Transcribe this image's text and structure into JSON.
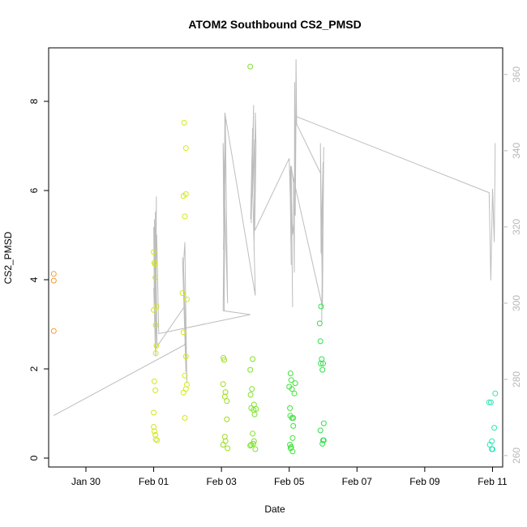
{
  "chart_data": {
    "type": "scatter",
    "title": "ATOM2 Southbound CS2_PMSD",
    "xlabel": "Date",
    "ylabel": "CS2_PMSD",
    "xlim": [
      -2.1,
      11.3
    ],
    "ylim": [
      -0.2,
      9.2
    ],
    "x_ticks": [
      {
        "value": -1,
        "label": "Jan 30"
      },
      {
        "value": 1,
        "label": "Feb 01"
      },
      {
        "value": 3,
        "label": "Feb 03"
      },
      {
        "value": 5,
        "label": "Feb 05"
      },
      {
        "value": 7,
        "label": "Feb 07"
      },
      {
        "value": 9,
        "label": "Feb 09"
      },
      {
        "value": 11,
        "label": "Feb 11"
      }
    ],
    "y_ticks": [
      0,
      2,
      4,
      6,
      8
    ],
    "y2_ticks": [
      260,
      280,
      300,
      320,
      340,
      360
    ],
    "y2lim": [
      257,
      367
    ],
    "grid": false,
    "points": [
      {
        "x": -1.95,
        "y": 4.13,
        "color": "#f39a2e"
      },
      {
        "x": -1.95,
        "y": 3.98,
        "color": "#f39a2e"
      },
      {
        "x": -1.95,
        "y": 2.85,
        "color": "#f39a2e"
      },
      {
        "x": 1.0,
        "y": 4.62,
        "color": "#d2e619"
      },
      {
        "x": 1.02,
        "y": 4.38,
        "color": "#d2e619"
      },
      {
        "x": 1.04,
        "y": 4.35,
        "color": "#d2e619"
      },
      {
        "x": 1.05,
        "y": 4.05,
        "color": "#d2e619"
      },
      {
        "x": 1.0,
        "y": 3.32,
        "color": "#d2e619"
      },
      {
        "x": 1.08,
        "y": 3.4,
        "color": "#d2e619"
      },
      {
        "x": 1.06,
        "y": 2.98,
        "color": "#d2e619"
      },
      {
        "x": 1.08,
        "y": 2.52,
        "color": "#d2e619"
      },
      {
        "x": 1.06,
        "y": 2.35,
        "color": "#d2e619"
      },
      {
        "x": 1.02,
        "y": 1.72,
        "color": "#d2e619"
      },
      {
        "x": 1.05,
        "y": 1.52,
        "color": "#d2e619"
      },
      {
        "x": 1.0,
        "y": 1.02,
        "color": "#d2e619"
      },
      {
        "x": 1.0,
        "y": 0.7,
        "color": "#d2e619"
      },
      {
        "x": 1.02,
        "y": 0.6,
        "color": "#d2e619"
      },
      {
        "x": 1.05,
        "y": 0.52,
        "color": "#d2e619"
      },
      {
        "x": 1.06,
        "y": 0.42,
        "color": "#d2e619"
      },
      {
        "x": 1.1,
        "y": 0.4,
        "color": "#d2e619"
      },
      {
        "x": 1.9,
        "y": 7.52,
        "color": "#d4ea14"
      },
      {
        "x": 1.95,
        "y": 6.95,
        "color": "#d4ea14"
      },
      {
        "x": 1.88,
        "y": 5.88,
        "color": "#d4ea14"
      },
      {
        "x": 1.95,
        "y": 5.92,
        "color": "#d4ea14"
      },
      {
        "x": 1.92,
        "y": 5.42,
        "color": "#d4ea14"
      },
      {
        "x": 1.85,
        "y": 3.7,
        "color": "#d4ea14"
      },
      {
        "x": 1.98,
        "y": 3.56,
        "color": "#d4ea14"
      },
      {
        "x": 1.88,
        "y": 2.82,
        "color": "#d4ea14"
      },
      {
        "x": 1.95,
        "y": 2.28,
        "color": "#d4ea14"
      },
      {
        "x": 1.92,
        "y": 1.85,
        "color": "#d4ea14"
      },
      {
        "x": 1.98,
        "y": 1.65,
        "color": "#d4ea14"
      },
      {
        "x": 1.95,
        "y": 1.55,
        "color": "#d4ea14"
      },
      {
        "x": 1.88,
        "y": 1.47,
        "color": "#d4ea14"
      },
      {
        "x": 1.92,
        "y": 0.9,
        "color": "#d4ea14"
      },
      {
        "x": 3.06,
        "y": 2.25,
        "color": "#9cde1e"
      },
      {
        "x": 3.08,
        "y": 2.2,
        "color": "#9cde1e"
      },
      {
        "x": 3.05,
        "y": 1.66,
        "color": "#9cde1e"
      },
      {
        "x": 3.12,
        "y": 1.48,
        "color": "#9cde1e"
      },
      {
        "x": 3.1,
        "y": 1.38,
        "color": "#9cde1e"
      },
      {
        "x": 3.16,
        "y": 1.28,
        "color": "#9cde1e"
      },
      {
        "x": 3.16,
        "y": 0.87,
        "color": "#9cde1e"
      },
      {
        "x": 3.1,
        "y": 0.48,
        "color": "#9cde1e"
      },
      {
        "x": 3.05,
        "y": 0.3,
        "color": "#9cde1e"
      },
      {
        "x": 3.12,
        "y": 0.38,
        "color": "#9cde1e"
      },
      {
        "x": 3.18,
        "y": 0.22,
        "color": "#9cde1e"
      },
      {
        "x": 3.85,
        "y": 8.78,
        "color": "#7ee22a"
      },
      {
        "x": 3.92,
        "y": 2.22,
        "color": "#7ee22a"
      },
      {
        "x": 3.85,
        "y": 1.98,
        "color": "#7ee22a"
      },
      {
        "x": 3.9,
        "y": 1.55,
        "color": "#7ee22a"
      },
      {
        "x": 3.86,
        "y": 1.42,
        "color": "#7ee22a"
      },
      {
        "x": 3.96,
        "y": 1.2,
        "color": "#7ee22a"
      },
      {
        "x": 3.88,
        "y": 1.12,
        "color": "#7ee22a"
      },
      {
        "x": 3.95,
        "y": 1.08,
        "color": "#7ee22a"
      },
      {
        "x": 4.02,
        "y": 1.1,
        "color": "#7ee22a"
      },
      {
        "x": 3.98,
        "y": 0.98,
        "color": "#7ee22a"
      },
      {
        "x": 3.92,
        "y": 0.55,
        "color": "#7ee22a"
      },
      {
        "x": 3.96,
        "y": 0.38,
        "color": "#7ee22a"
      },
      {
        "x": 3.88,
        "y": 0.3,
        "color": "#7ee22a"
      },
      {
        "x": 3.85,
        "y": 0.28,
        "color": "#7ee22a"
      },
      {
        "x": 3.94,
        "y": 0.32,
        "color": "#7ee22a"
      },
      {
        "x": 4.0,
        "y": 0.2,
        "color": "#7ee22a"
      },
      {
        "x": 5.04,
        "y": 1.9,
        "color": "#3ee238"
      },
      {
        "x": 5.06,
        "y": 1.75,
        "color": "#3ee238"
      },
      {
        "x": 5.0,
        "y": 1.6,
        "color": "#3ee238"
      },
      {
        "x": 5.08,
        "y": 1.55,
        "color": "#3ee238"
      },
      {
        "x": 5.18,
        "y": 1.68,
        "color": "#3ee238"
      },
      {
        "x": 5.15,
        "y": 1.45,
        "color": "#3ee238"
      },
      {
        "x": 5.02,
        "y": 1.12,
        "color": "#3ee238"
      },
      {
        "x": 5.03,
        "y": 0.95,
        "color": "#3ee238"
      },
      {
        "x": 5.08,
        "y": 0.9,
        "color": "#3ee238"
      },
      {
        "x": 5.12,
        "y": 0.9,
        "color": "#3ee238"
      },
      {
        "x": 5.12,
        "y": 0.72,
        "color": "#3ee238"
      },
      {
        "x": 5.1,
        "y": 0.45,
        "color": "#3ee238"
      },
      {
        "x": 5.02,
        "y": 0.3,
        "color": "#3ee238"
      },
      {
        "x": 5.06,
        "y": 0.25,
        "color": "#3ee238"
      },
      {
        "x": 5.04,
        "y": 0.22,
        "color": "#3ee238"
      },
      {
        "x": 5.1,
        "y": 0.15,
        "color": "#3ee238"
      },
      {
        "x": 5.94,
        "y": 3.4,
        "color": "#2fe04c"
      },
      {
        "x": 5.9,
        "y": 3.02,
        "color": "#2fe04c"
      },
      {
        "x": 5.92,
        "y": 2.62,
        "color": "#2fe04c"
      },
      {
        "x": 5.96,
        "y": 2.22,
        "color": "#2fe04c"
      },
      {
        "x": 5.93,
        "y": 2.12,
        "color": "#2fe04c"
      },
      {
        "x": 6.0,
        "y": 2.12,
        "color": "#2fe04c"
      },
      {
        "x": 5.98,
        "y": 1.98,
        "color": "#2fe04c"
      },
      {
        "x": 6.02,
        "y": 0.78,
        "color": "#2fe04c"
      },
      {
        "x": 5.92,
        "y": 0.62,
        "color": "#2fe04c"
      },
      {
        "x": 6.0,
        "y": 0.4,
        "color": "#2fe04c"
      },
      {
        "x": 6.02,
        "y": 0.4,
        "color": "#2fe04c"
      },
      {
        "x": 5.98,
        "y": 0.32,
        "color": "#2fe04c"
      },
      {
        "x": 10.9,
        "y": 1.25,
        "color": "#2ee6b4"
      },
      {
        "x": 10.95,
        "y": 1.25,
        "color": "#2ee6b4"
      },
      {
        "x": 11.08,
        "y": 1.45,
        "color": "#2ee6b4"
      },
      {
        "x": 11.05,
        "y": 0.68,
        "color": "#2ee6b4"
      },
      {
        "x": 10.98,
        "y": 0.38,
        "color": "#2ee6b4"
      },
      {
        "x": 10.92,
        "y": 0.3,
        "color": "#2ee6b4"
      },
      {
        "x": 10.98,
        "y": 0.2,
        "color": "#2ee6b4"
      },
      {
        "x": 11.0,
        "y": 0.2,
        "color": "#2ee6b4"
      }
    ],
    "secondary_line": {
      "color": "#bdbdbd",
      "x": [
        -1.95,
        1.9,
        1.95,
        1.88,
        1.92,
        1.98,
        1.85,
        1.95,
        1.9,
        1.05,
        1.0,
        1.08,
        1.02,
        1.06,
        1.05,
        1.1,
        1.0,
        1.02,
        1.08,
        1.04,
        1.06,
        1.05,
        1.08,
        1.06,
        1.04,
        1.09,
        1.15,
        3.85,
        3.05,
        3.1,
        3.08,
        3.12,
        3.06,
        3.1,
        3.12,
        3.18,
        3.05,
        3.08,
        3.1,
        4.0,
        3.9,
        3.86,
        3.92,
        3.88,
        3.95,
        3.92,
        3.98,
        3.96,
        4.0,
        4.02,
        3.98,
        5.0,
        5.04,
        5.06,
        5.02,
        5.08,
        5.1,
        5.06,
        5.12,
        5.15,
        5.16,
        5.18,
        5.2,
        5.22,
        5.93,
        5.98,
        5.92,
        5.94,
        6.0,
        5.96,
        6.02,
        5.98,
        5.04,
        5.1,
        5.18,
        5.2,
        10.9,
        10.95,
        11.0,
        11.05,
        11.08
      ],
      "y": [
        270.5,
        289,
        290,
        310,
        316,
        279,
        312,
        282,
        299,
        288,
        304,
        296,
        322,
        308,
        324,
        289,
        320,
        300,
        325,
        306,
        315,
        301,
        328,
        286,
        291,
        318,
        292,
        297,
        298,
        343,
        301,
        349,
        314,
        335,
        345,
        300,
        342,
        298,
        350,
        302,
        338,
        322,
        346,
        321,
        352,
        328,
        343,
        314,
        350,
        341,
        319,
        338,
        325,
        310,
        335,
        315,
        299,
        336,
        332,
        308,
        358,
        323,
        364,
        347,
        334,
        300,
        342,
        313,
        337,
        295,
        341,
        299,
        336,
        318,
        325,
        349,
        329,
        306,
        330,
        316,
        342
      ]
    }
  }
}
